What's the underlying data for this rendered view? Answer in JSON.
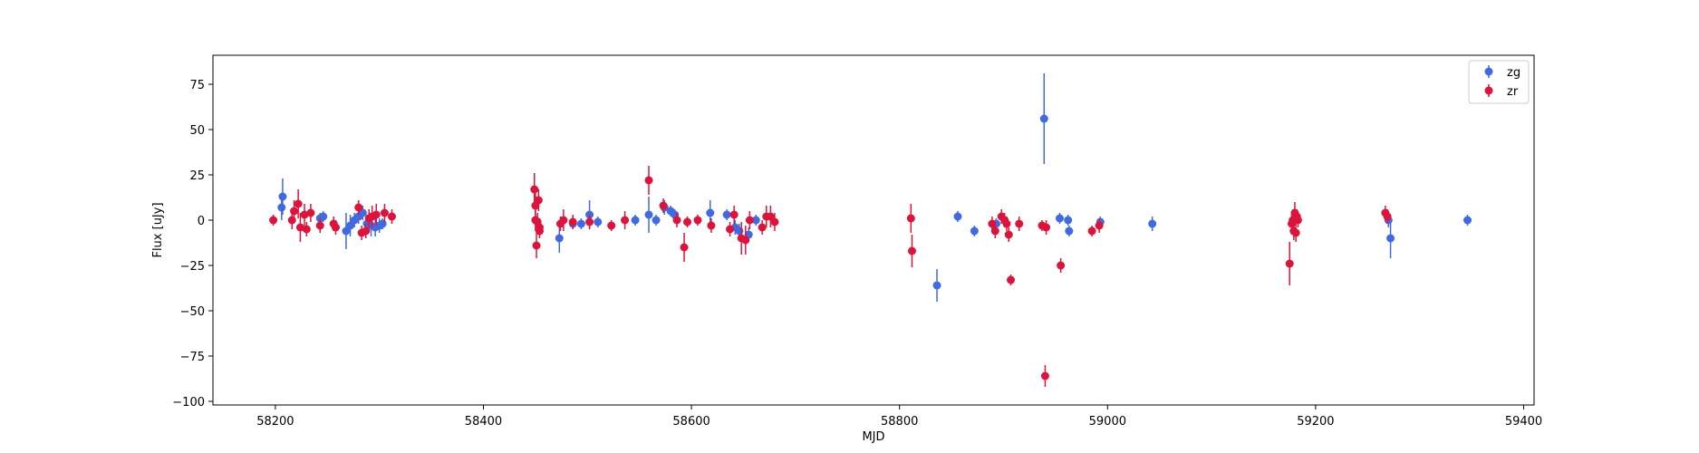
{
  "chart_data": {
    "type": "scatter",
    "title": "",
    "xlabel": "MJD",
    "ylabel": "Flux [uJy]",
    "xlim": [
      58140,
      59410
    ],
    "ylim": [
      -102,
      91
    ],
    "xticks": [
      58200,
      58400,
      58600,
      58800,
      59000,
      59200,
      59400
    ],
    "yticks": [
      -100,
      -75,
      -50,
      -25,
      0,
      25,
      50,
      75
    ],
    "grid": false,
    "legend": {
      "position": "top-right"
    },
    "series": [
      {
        "name": "zg",
        "color": "#4169e1",
        "points": [
          {
            "x": 58206,
            "y": 7,
            "err": 7
          },
          {
            "x": 58207,
            "y": 13,
            "err": 10
          },
          {
            "x": 58243,
            "y": 1,
            "err": 3
          },
          {
            "x": 58246,
            "y": 2,
            "err": 3
          },
          {
            "x": 58268,
            "y": -6,
            "err": 10
          },
          {
            "x": 58272,
            "y": -3,
            "err": 6
          },
          {
            "x": 58276,
            "y": 0,
            "err": 4
          },
          {
            "x": 58280,
            "y": 2,
            "err": 4
          },
          {
            "x": 58284,
            "y": 4,
            "err": 4
          },
          {
            "x": 58288,
            "y": -2,
            "err": 5
          },
          {
            "x": 58292,
            "y": -3,
            "err": 6
          },
          {
            "x": 58296,
            "y": -4,
            "err": 5
          },
          {
            "x": 58300,
            "y": -3,
            "err": 4
          },
          {
            "x": 58303,
            "y": -2,
            "err": 3
          },
          {
            "x": 58473,
            "y": -10,
            "err": 8
          },
          {
            "x": 58486,
            "y": -2,
            "err": 3
          },
          {
            "x": 58494,
            "y": -2,
            "err": 3
          },
          {
            "x": 58502,
            "y": 3,
            "err": 8
          },
          {
            "x": 58510,
            "y": -1,
            "err": 3
          },
          {
            "x": 58546,
            "y": 0,
            "err": 3
          },
          {
            "x": 58559,
            "y": 3,
            "err": 10
          },
          {
            "x": 58566,
            "y": 0,
            "err": 3
          },
          {
            "x": 58574,
            "y": 7,
            "err": 4
          },
          {
            "x": 58580,
            "y": 5,
            "err": 3
          },
          {
            "x": 58584,
            "y": 3,
            "err": 3
          },
          {
            "x": 58618,
            "y": 4,
            "err": 7
          },
          {
            "x": 58634,
            "y": 3,
            "err": 3
          },
          {
            "x": 58642,
            "y": -4,
            "err": 4
          },
          {
            "x": 58646,
            "y": -6,
            "err": 4
          },
          {
            "x": 58655,
            "y": -8,
            "err": 4
          },
          {
            "x": 58662,
            "y": 0,
            "err": 3
          },
          {
            "x": 58836,
            "y": -36,
            "err": 9
          },
          {
            "x": 58856,
            "y": 2,
            "err": 3
          },
          {
            "x": 58872,
            "y": -6,
            "err": 3
          },
          {
            "x": 58893,
            "y": -2,
            "err": 3
          },
          {
            "x": 58939,
            "y": 56,
            "err": 25
          },
          {
            "x": 58954,
            "y": 1,
            "err": 3
          },
          {
            "x": 58962,
            "y": 0,
            "err": 3
          },
          {
            "x": 58963,
            "y": -6,
            "err": 3
          },
          {
            "x": 58993,
            "y": -1,
            "err": 3
          },
          {
            "x": 59043,
            "y": -2,
            "err": 4
          },
          {
            "x": 59270,
            "y": 0,
            "err": 4
          },
          {
            "x": 59272,
            "y": -10,
            "err": 11
          },
          {
            "x": 59346,
            "y": 0,
            "err": 3
          }
        ]
      },
      {
        "name": "zr",
        "color": "#dc143c",
        "points": [
          {
            "x": 58198,
            "y": 0,
            "err": 3
          },
          {
            "x": 58216,
            "y": 0,
            "err": 5
          },
          {
            "x": 58218,
            "y": 5,
            "err": 6
          },
          {
            "x": 58222,
            "y": 9,
            "err": 8
          },
          {
            "x": 58224,
            "y": -4,
            "err": 8
          },
          {
            "x": 58228,
            "y": 3,
            "err": 6
          },
          {
            "x": 58230,
            "y": -5,
            "err": 4
          },
          {
            "x": 58234,
            "y": 4,
            "err": 5
          },
          {
            "x": 58243,
            "y": -3,
            "err": 4
          },
          {
            "x": 58256,
            "y": -2,
            "err": 4
          },
          {
            "x": 58258,
            "y": -4,
            "err": 4
          },
          {
            "x": 58280,
            "y": 7,
            "err": 4
          },
          {
            "x": 58283,
            "y": -7,
            "err": 4
          },
          {
            "x": 58287,
            "y": -6,
            "err": 4
          },
          {
            "x": 58290,
            "y": 1,
            "err": 5
          },
          {
            "x": 58293,
            "y": 2,
            "err": 6
          },
          {
            "x": 58297,
            "y": 3,
            "err": 6
          },
          {
            "x": 58305,
            "y": 4,
            "err": 5
          },
          {
            "x": 58312,
            "y": 2,
            "err": 4
          },
          {
            "x": 58449,
            "y": 17,
            "err": 9
          },
          {
            "x": 58450,
            "y": 8,
            "err": 8
          },
          {
            "x": 58450,
            "y": 0,
            "err": 6
          },
          {
            "x": 58451,
            "y": -14,
            "err": 7
          },
          {
            "x": 58452,
            "y": -1,
            "err": 5
          },
          {
            "x": 58453,
            "y": 11,
            "err": 6
          },
          {
            "x": 58454,
            "y": -4,
            "err": 5
          },
          {
            "x": 58454,
            "y": -6,
            "err": 4
          },
          {
            "x": 58474,
            "y": -2,
            "err": 4
          },
          {
            "x": 58477,
            "y": 0,
            "err": 6
          },
          {
            "x": 58486,
            "y": -1,
            "err": 4
          },
          {
            "x": 58502,
            "y": -1,
            "err": 4
          },
          {
            "x": 58523,
            "y": -3,
            "err": 3
          },
          {
            "x": 58536,
            "y": 0,
            "err": 5
          },
          {
            "x": 58559,
            "y": 22,
            "err": 8
          },
          {
            "x": 58573,
            "y": 8,
            "err": 4
          },
          {
            "x": 58586,
            "y": 0,
            "err": 4
          },
          {
            "x": 58593,
            "y": -15,
            "err": 8
          },
          {
            "x": 58596,
            "y": -1,
            "err": 3
          },
          {
            "x": 58606,
            "y": 0,
            "err": 3
          },
          {
            "x": 58619,
            "y": -3,
            "err": 4
          },
          {
            "x": 58637,
            "y": -5,
            "err": 4
          },
          {
            "x": 58641,
            "y": 3,
            "err": 5
          },
          {
            "x": 58648,
            "y": -10,
            "err": 9
          },
          {
            "x": 58652,
            "y": -11,
            "err": 8
          },
          {
            "x": 58656,
            "y": 0,
            "err": 5
          },
          {
            "x": 58668,
            "y": -4,
            "err": 4
          },
          {
            "x": 58672,
            "y": 2,
            "err": 6
          },
          {
            "x": 58676,
            "y": 2,
            "err": 6
          },
          {
            "x": 58680,
            "y": -1,
            "err": 5
          },
          {
            "x": 58811,
            "y": 1,
            "err": 8
          },
          {
            "x": 58812,
            "y": -17,
            "err": 9
          },
          {
            "x": 58889,
            "y": -2,
            "err": 4
          },
          {
            "x": 58892,
            "y": -6,
            "err": 4
          },
          {
            "x": 58898,
            "y": 2,
            "err": 4
          },
          {
            "x": 58901,
            "y": 0,
            "err": 4
          },
          {
            "x": 58903,
            "y": -2,
            "err": 4
          },
          {
            "x": 58905,
            "y": -8,
            "err": 4
          },
          {
            "x": 58907,
            "y": -33,
            "err": 3
          },
          {
            "x": 58915,
            "y": -2,
            "err": 4
          },
          {
            "x": 58937,
            "y": -3,
            "err": 3
          },
          {
            "x": 58940,
            "y": -86,
            "err": 6
          },
          {
            "x": 58941,
            "y": -4,
            "err": 4
          },
          {
            "x": 58955,
            "y": -25,
            "err": 4
          },
          {
            "x": 58985,
            "y": -6,
            "err": 3
          },
          {
            "x": 58992,
            "y": -3,
            "err": 4
          },
          {
            "x": 59175,
            "y": -24,
            "err": 12
          },
          {
            "x": 59177,
            "y": -2,
            "err": 6
          },
          {
            "x": 59178,
            "y": 0,
            "err": 6
          },
          {
            "x": 59179,
            "y": -6,
            "err": 5
          },
          {
            "x": 59180,
            "y": 4,
            "err": 6
          },
          {
            "x": 59181,
            "y": -7,
            "err": 5
          },
          {
            "x": 59182,
            "y": 2,
            "err": 4
          },
          {
            "x": 59183,
            "y": 0,
            "err": 4
          },
          {
            "x": 59267,
            "y": 4,
            "err": 4
          },
          {
            "x": 59269,
            "y": 2,
            "err": 4
          }
        ]
      }
    ]
  }
}
